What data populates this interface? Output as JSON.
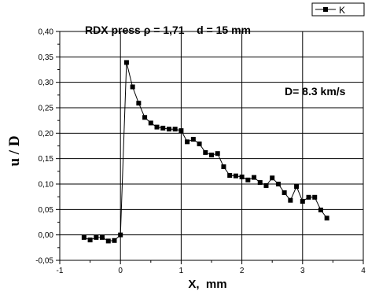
{
  "chart_data": {
    "type": "line",
    "title": "RDX press ρ = 1,71    d = 15 mm",
    "annotation": "D= 8.3 km/s",
    "xlabel": "X,  mm",
    "ylabel": "u / D",
    "xlim": [
      -1,
      4
    ],
    "ylim": [
      -0.05,
      0.4
    ],
    "x_ticks": [
      -1,
      0,
      1,
      2,
      3,
      4
    ],
    "x_tick_labels": [
      "-1",
      "0",
      "1",
      "2",
      "3",
      "4"
    ],
    "y_ticks": [
      -0.05,
      0.0,
      0.05,
      0.1,
      0.15,
      0.2,
      0.25,
      0.3,
      0.35,
      0.4
    ],
    "y_tick_labels": [
      "-0,05",
      "0,00",
      "0,05",
      "0,10",
      "0,15",
      "0,20",
      "0,25",
      "0,30",
      "0,35",
      "0,40"
    ],
    "grid": true,
    "legend_position": "top-right",
    "series": [
      {
        "name": "K",
        "color": "#000000",
        "marker": "square",
        "x": [
          -0.6,
          -0.5,
          -0.4,
          -0.3,
          -0.2,
          -0.1,
          0.0,
          0.1,
          0.2,
          0.3,
          0.4,
          0.5,
          0.6,
          0.7,
          0.8,
          0.9,
          1.0,
          1.1,
          1.2,
          1.3,
          1.4,
          1.5,
          1.6,
          1.7,
          1.8,
          1.9,
          2.0,
          2.1,
          2.2,
          2.3,
          2.4,
          2.5,
          2.6,
          2.7,
          2.8,
          2.9,
          3.0,
          3.1,
          3.2,
          3.3,
          3.4
        ],
        "y": [
          -0.005,
          -0.01,
          -0.005,
          -0.005,
          -0.012,
          -0.011,
          0.0,
          0.339,
          0.291,
          0.259,
          0.231,
          0.22,
          0.212,
          0.21,
          0.208,
          0.208,
          0.205,
          0.183,
          0.188,
          0.179,
          0.162,
          0.157,
          0.16,
          0.134,
          0.117,
          0.116,
          0.114,
          0.108,
          0.113,
          0.103,
          0.097,
          0.112,
          0.1,
          0.083,
          0.068,
          0.095,
          0.066,
          0.074,
          0.074,
          0.049,
          0.033
        ]
      }
    ]
  }
}
